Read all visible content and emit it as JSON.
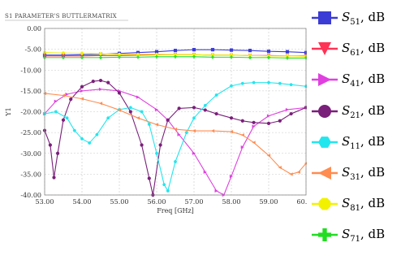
{
  "chart_data": {
    "type": "line",
    "title": "S1 PARAMETER'S BUTTLERMATRIX",
    "xlabel": "Freq [GHz]",
    "ylabel": "Y1",
    "xlim": [
      53,
      60
    ],
    "ylim": [
      -40,
      0
    ],
    "xticks": [
      "53.00",
      "54.00",
      "55.00",
      "56.00",
      "57.00",
      "58.00",
      "59.00",
      "60.00"
    ],
    "yticks": [
      "0.00",
      "-5.00",
      "-10.00",
      "-15.00",
      "-20.00",
      "-25.00",
      "-30.00",
      "-35.00",
      "-40.00"
    ],
    "grid": true,
    "legend_position": "right",
    "series": [
      {
        "name": "S51",
        "sub": "51",
        "color": "#3b3bd6",
        "marker": "square",
        "x": [
          53,
          53.5,
          54,
          54.5,
          55,
          55.5,
          56,
          56.5,
          57,
          57.5,
          58,
          58.5,
          59,
          59.5,
          60
        ],
        "y": [
          -6.4,
          -6.4,
          -6.3,
          -6.2,
          -6.0,
          -5.8,
          -5.6,
          -5.3,
          -5.1,
          -5.1,
          -5.2,
          -5.3,
          -5.5,
          -5.6,
          -5.8
        ]
      },
      {
        "name": "S61",
        "sub": "61",
        "color": "#ff3355",
        "marker": "tri-down",
        "x": [
          53,
          53.5,
          54,
          54.5,
          55,
          55.5,
          56,
          56.5,
          57,
          57.5,
          58,
          58.5,
          59,
          59.5,
          60
        ],
        "y": [
          -6.6,
          -6.6,
          -6.6,
          -6.5,
          -6.5,
          -6.4,
          -6.3,
          -6.3,
          -6.3,
          -6.4,
          -6.4,
          -6.5,
          -6.5,
          -6.6,
          -6.6
        ]
      },
      {
        "name": "S41",
        "sub": "41",
        "color": "#e040e0",
        "marker": "tri-right",
        "x": [
          53,
          53.3,
          53.6,
          54,
          54.5,
          55,
          55.5,
          56,
          56.3,
          56.6,
          57,
          57.3,
          57.6,
          57.8,
          58,
          58.3,
          58.6,
          59,
          59.5,
          60
        ],
        "y": [
          -20.5,
          -17.5,
          -15.8,
          -15.0,
          -14.6,
          -15.0,
          -16.5,
          -19.5,
          -22.0,
          -25.5,
          -30.0,
          -34.5,
          -39.0,
          -40.0,
          -35.5,
          -28.5,
          -23.5,
          -21.0,
          -19.5,
          -19.0
        ]
      },
      {
        "name": "S21",
        "sub": "21",
        "color": "#7a1f7a",
        "marker": "circle",
        "x": [
          53,
          53.15,
          53.25,
          53.35,
          53.5,
          53.7,
          54,
          54.3,
          54.5,
          54.7,
          55,
          55.3,
          55.6,
          55.8,
          55.9,
          56.1,
          56.3,
          56.6,
          57,
          57.3,
          57.6,
          58,
          58.3,
          58.6,
          59,
          59.3,
          59.6,
          60
        ],
        "y": [
          -24.5,
          -28.0,
          -35.8,
          -30.0,
          -22.0,
          -17.0,
          -14.0,
          -12.7,
          -12.5,
          -13.0,
          -15.5,
          -20.0,
          -28.0,
          -36.0,
          -40.0,
          -28.0,
          -22.0,
          -19.2,
          -19.0,
          -19.6,
          -20.5,
          -21.5,
          -22.2,
          -22.6,
          -22.8,
          -22.2,
          -20.5,
          -19.0
        ]
      },
      {
        "name": "S11",
        "sub": "11",
        "color": "#22e6ee",
        "marker": "hexagon",
        "x": [
          53,
          53.3,
          53.6,
          53.8,
          54,
          54.2,
          54.4,
          54.7,
          55,
          55.3,
          55.6,
          55.8,
          56.0,
          56.2,
          56.3,
          56.5,
          56.8,
          57,
          57.3,
          57.6,
          58,
          58.3,
          58.6,
          59,
          59.3,
          59.6,
          60
        ],
        "y": [
          -20.5,
          -20.0,
          -21.5,
          -24.5,
          -26.5,
          -27.5,
          -25.5,
          -21.5,
          -19.5,
          -19.0,
          -20.0,
          -23.0,
          -30.0,
          -37.5,
          -39.0,
          -32.0,
          -25.0,
          -21.5,
          -18.5,
          -16.0,
          -13.8,
          -13.2,
          -13.0,
          -13.0,
          -13.2,
          -13.5,
          -13.9
        ]
      },
      {
        "name": "S31",
        "sub": "31",
        "color": "#ff8c50",
        "marker": "tri-left",
        "x": [
          53,
          53.5,
          54,
          54.5,
          55,
          55.5,
          56,
          56.5,
          57,
          57.5,
          58,
          58.3,
          58.6,
          59,
          59.3,
          59.6,
          59.8,
          60
        ],
        "y": [
          -15.6,
          -16.1,
          -16.9,
          -18.0,
          -19.6,
          -21.5,
          -23.1,
          -24.2,
          -24.6,
          -24.6,
          -24.8,
          -25.6,
          -27.4,
          -30.5,
          -33.4,
          -35.0,
          -34.5,
          -32.4
        ]
      },
      {
        "name": "S81",
        "sub": "81",
        "color": "#f2f200",
        "marker": "octagon",
        "x": [
          53,
          53.5,
          54,
          54.5,
          55,
          55.5,
          56,
          56.5,
          57,
          57.5,
          58,
          58.5,
          59,
          59.5,
          60
        ],
        "y": [
          -5.8,
          -5.9,
          -6.0,
          -6.1,
          -6.2,
          -6.2,
          -6.2,
          -6.3,
          -6.3,
          -6.4,
          -6.4,
          -6.5,
          -6.6,
          -6.6,
          -6.7
        ]
      },
      {
        "name": "S71",
        "sub": "71",
        "color": "#22dd22",
        "marker": "cross",
        "x": [
          53,
          53.5,
          54,
          54.5,
          55,
          55.5,
          56,
          56.5,
          57,
          57.5,
          58,
          58.5,
          59,
          59.5,
          60
        ],
        "y": [
          -7.0,
          -7.0,
          -7.0,
          -7.0,
          -6.9,
          -6.9,
          -6.8,
          -6.8,
          -6.8,
          -6.9,
          -6.9,
          -7.0,
          -7.0,
          -7.1,
          -7.1
        ]
      }
    ]
  }
}
